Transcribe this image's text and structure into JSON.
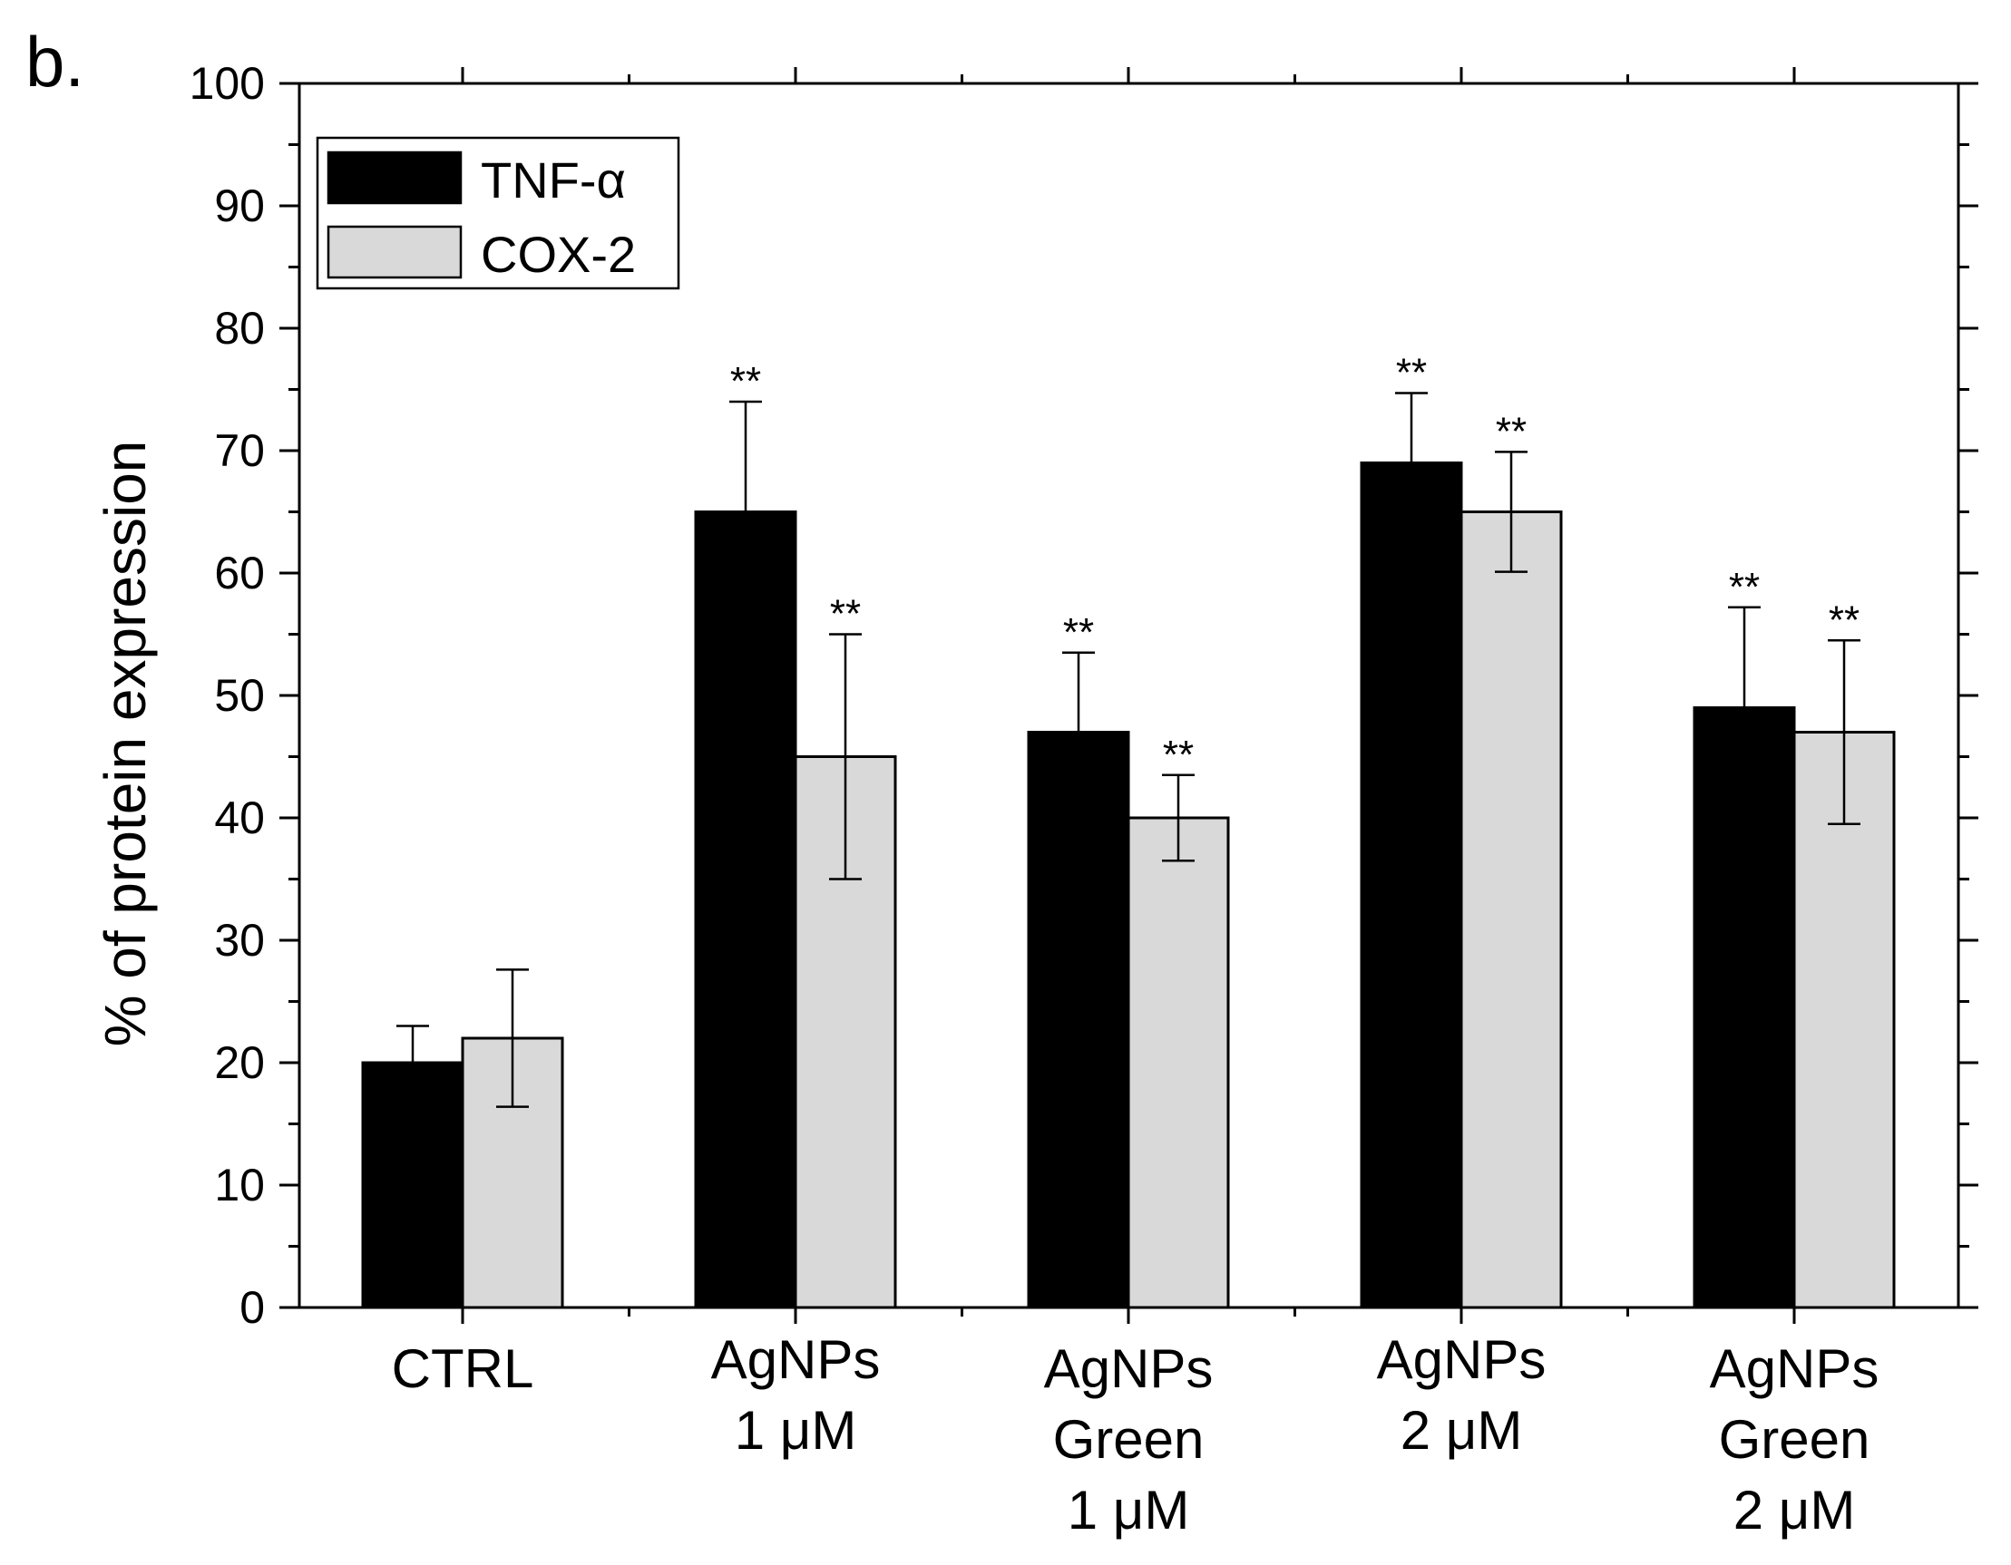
{
  "panel_label": "b.",
  "colors": {
    "tnf": "#000000",
    "cox": "#d9d9d9",
    "axis": "#000000",
    "background": "#ffffff"
  },
  "chart_data": {
    "type": "bar",
    "title": "",
    "xlabel": "",
    "ylabel": "% of protein expression",
    "ylim": [
      0,
      100
    ],
    "yticks": [
      0,
      10,
      20,
      30,
      40,
      50,
      60,
      70,
      80,
      90,
      100
    ],
    "categories": [
      [
        "CTRL"
      ],
      [
        "AgNPs",
        "1 μM"
      ],
      [
        "AgNPs",
        "Green",
        "1 μM"
      ],
      [
        "AgNPs",
        "2 μM"
      ],
      [
        "AgNPs",
        "Green",
        "2 μM"
      ]
    ],
    "series": [
      {
        "name": "TNF-α",
        "values": [
          20,
          65,
          47,
          69,
          49
        ],
        "errors": [
          3,
          9,
          6.5,
          5.7,
          8.2
        ],
        "significance": [
          "",
          "**",
          "**",
          "**",
          "**"
        ]
      },
      {
        "name": "COX-2",
        "values": [
          22,
          45,
          40,
          65,
          47
        ],
        "errors": [
          5.6,
          10,
          3.5,
          4.9,
          7.5
        ],
        "significance": [
          "",
          "**",
          "**",
          "**",
          "**"
        ]
      }
    ],
    "legend_position": "top-left",
    "grid": false
  }
}
